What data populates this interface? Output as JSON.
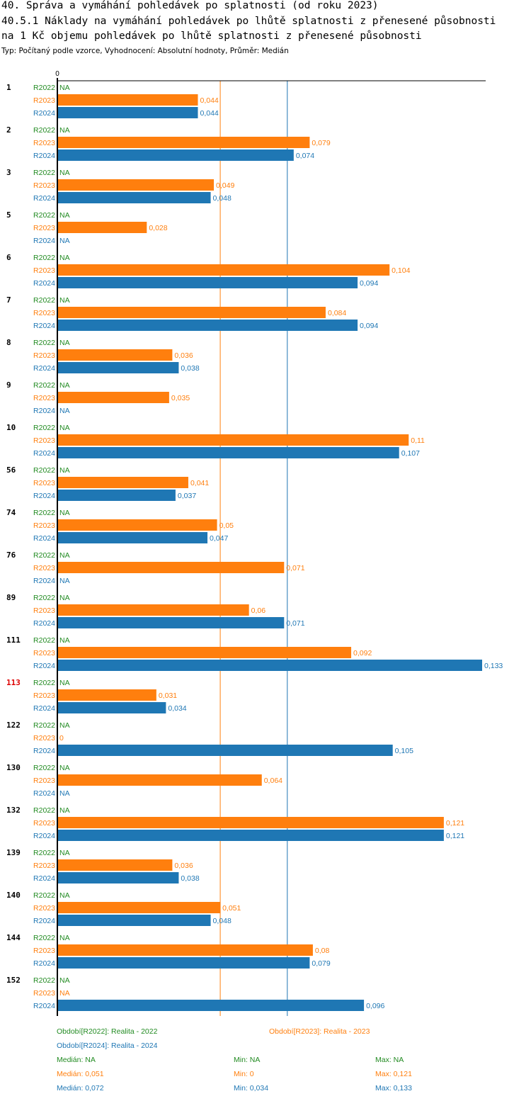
{
  "header": {
    "title1": "40. Správa a vymáhání pohledávek po splatnosti (od roku 2023)",
    "title2": "40.5.1 Náklady na vymáhání pohledávek po lhůtě splatnosti z přenesené působnosti",
    "title3": "na 1 Kč objemu pohledávek po lhůtě splatnosti z přenesené působnosti",
    "subtitle": "Typ: Počítaný podle vzorce, Vyhodnocení: Absolutní hodnoty, Průměr: Medián"
  },
  "chart_data": {
    "type": "bar",
    "orientation": "horizontal",
    "axis_zero_label": "0",
    "xlim": [
      0,
      0.133
    ],
    "series": [
      {
        "key": "R2022",
        "name": "Období[R2022]: Realita - 2022",
        "color": "#228b22"
      },
      {
        "key": "R2023",
        "name": "Období[R2023]: Realita - 2023",
        "color": "#ff7f0e"
      },
      {
        "key": "R2024",
        "name": "Období[R2024]: Realita - 2024",
        "color": "#1f77b4"
      }
    ],
    "groups": [
      {
        "id": "1",
        "highlight": false,
        "values": [
          null,
          0.044,
          0.044
        ],
        "labels": [
          "NA",
          "0,044",
          "0,044"
        ]
      },
      {
        "id": "2",
        "highlight": false,
        "values": [
          null,
          0.079,
          0.074
        ],
        "labels": [
          "NA",
          "0,079",
          "0,074"
        ]
      },
      {
        "id": "3",
        "highlight": false,
        "values": [
          null,
          0.049,
          0.048
        ],
        "labels": [
          "NA",
          "0,049",
          "0,048"
        ]
      },
      {
        "id": "5",
        "highlight": false,
        "values": [
          null,
          0.028,
          null
        ],
        "labels": [
          "NA",
          "0,028",
          "NA"
        ]
      },
      {
        "id": "6",
        "highlight": false,
        "values": [
          null,
          0.104,
          0.094
        ],
        "labels": [
          "NA",
          "0,104",
          "0,094"
        ]
      },
      {
        "id": "7",
        "highlight": false,
        "values": [
          null,
          0.084,
          0.094
        ],
        "labels": [
          "NA",
          "0,084",
          "0,094"
        ]
      },
      {
        "id": "8",
        "highlight": false,
        "values": [
          null,
          0.036,
          0.038
        ],
        "labels": [
          "NA",
          "0,036",
          "0,038"
        ]
      },
      {
        "id": "9",
        "highlight": false,
        "values": [
          null,
          0.035,
          null
        ],
        "labels": [
          "NA",
          "0,035",
          "NA"
        ]
      },
      {
        "id": "10",
        "highlight": false,
        "values": [
          null,
          0.11,
          0.107
        ],
        "labels": [
          "NA",
          "0,11",
          "0,107"
        ]
      },
      {
        "id": "56",
        "highlight": false,
        "values": [
          null,
          0.041,
          0.037
        ],
        "labels": [
          "NA",
          "0,041",
          "0,037"
        ]
      },
      {
        "id": "74",
        "highlight": false,
        "values": [
          null,
          0.05,
          0.047
        ],
        "labels": [
          "NA",
          "0,05",
          "0,047"
        ]
      },
      {
        "id": "76",
        "highlight": false,
        "values": [
          null,
          0.071,
          null
        ],
        "labels": [
          "NA",
          "0,071",
          "NA"
        ]
      },
      {
        "id": "89",
        "highlight": false,
        "values": [
          null,
          0.06,
          0.071
        ],
        "labels": [
          "NA",
          "0,06",
          "0,071"
        ]
      },
      {
        "id": "111",
        "highlight": false,
        "values": [
          null,
          0.092,
          0.133
        ],
        "labels": [
          "NA",
          "0,092",
          "0,133"
        ]
      },
      {
        "id": "113",
        "highlight": true,
        "values": [
          null,
          0.031,
          0.034
        ],
        "labels": [
          "NA",
          "0,031",
          "0,034"
        ]
      },
      {
        "id": "122",
        "highlight": false,
        "values": [
          null,
          0,
          0.105
        ],
        "labels": [
          "NA",
          "0",
          "0,105"
        ]
      },
      {
        "id": "130",
        "highlight": false,
        "values": [
          null,
          0.064,
          null
        ],
        "labels": [
          "NA",
          "0,064",
          "NA"
        ]
      },
      {
        "id": "132",
        "highlight": false,
        "values": [
          null,
          0.121,
          0.121
        ],
        "labels": [
          "NA",
          "0,121",
          "0,121"
        ]
      },
      {
        "id": "139",
        "highlight": false,
        "values": [
          null,
          0.036,
          0.038
        ],
        "labels": [
          "NA",
          "0,036",
          "0,038"
        ]
      },
      {
        "id": "140",
        "highlight": false,
        "values": [
          null,
          0.051,
          0.048
        ],
        "labels": [
          "NA",
          "0,051",
          "0,048"
        ]
      },
      {
        "id": "144",
        "highlight": false,
        "values": [
          null,
          0.08,
          0.079
        ],
        "labels": [
          "NA",
          "0,08",
          "0,079"
        ]
      },
      {
        "id": "152",
        "highlight": false,
        "values": [
          null,
          null,
          0.096
        ],
        "labels": [
          "NA",
          "NA",
          "0,096"
        ]
      }
    ],
    "reference_lines": [
      {
        "series": "R2023",
        "value": 0.051
      },
      {
        "series": "R2024",
        "value": 0.072
      }
    ]
  },
  "legend": {
    "r2022": "Období[R2022]: Realita - 2022",
    "r2023": "Období[R2023]: Realita - 2023",
    "r2024": "Období[R2024]: Realita - 2024"
  },
  "stats": {
    "r2022": {
      "median": "Medián: NA",
      "min": "Min: NA",
      "max": "Max: NA"
    },
    "r2023": {
      "median": "Medián: 0,051",
      "min": "Min: 0",
      "max": "Max: 0,121"
    },
    "r2024": {
      "median": "Medián: 0,072",
      "min": "Min: 0,034",
      "max": "Max: 0,133"
    }
  },
  "colors": {
    "r2022": "#228b22",
    "r2023": "#ff7f0e",
    "r2024": "#1f77b4",
    "highlight": "#dd0000"
  }
}
